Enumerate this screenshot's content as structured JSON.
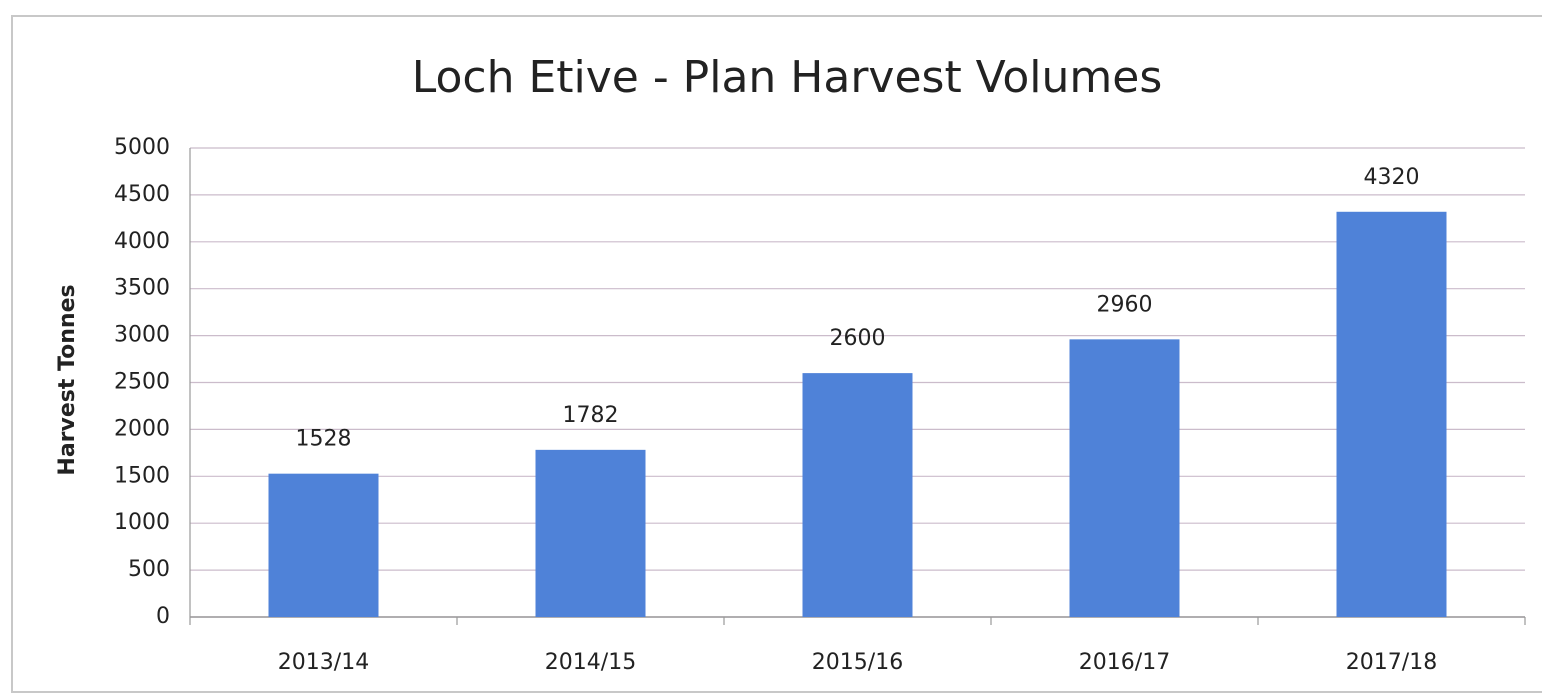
{
  "chart_data": {
    "type": "bar",
    "title": "Loch Etive - Plan Harvest Volumes",
    "y_label": "Harvest Tonnes",
    "categories": [
      "2013/14",
      "2014/15",
      "2015/16",
      "2016/17",
      "2017/18"
    ],
    "values": [
      1528,
      1782,
      2600,
      2960,
      4320
    ],
    "color": "#4f82d8",
    "ylim": [
      0,
      5000
    ],
    "yticks": [
      0,
      500,
      1000,
      1500,
      2000,
      2500,
      3000,
      3500,
      4000,
      4500,
      5000
    ],
    "grid": true
  }
}
